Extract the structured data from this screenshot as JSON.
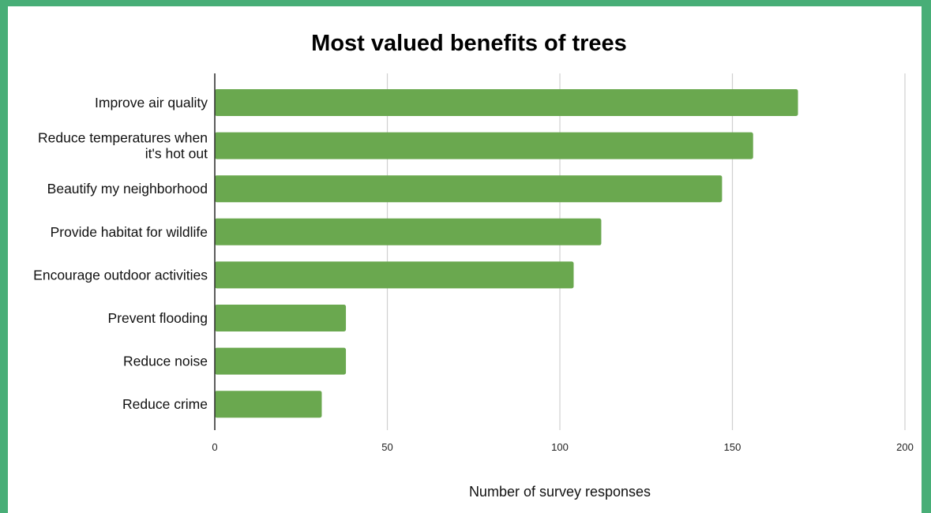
{
  "chart_data": {
    "type": "bar",
    "orientation": "horizontal",
    "title": "Most valued benefits of trees",
    "xlabel": "Number of survey responses",
    "ylabel": "",
    "categories": [
      [
        "Improve air quality"
      ],
      [
        "Reduce temperatures when",
        "it's hot out"
      ],
      [
        "Beautify my neighborhood"
      ],
      [
        "Provide habitat for wildlife"
      ],
      [
        "Encourage outdoor activities"
      ],
      [
        "Prevent flooding"
      ],
      [
        "Reduce noise"
      ],
      [
        "Reduce crime"
      ]
    ],
    "values": [
      169,
      156,
      147,
      112,
      104,
      38,
      38,
      31
    ],
    "xlim": [
      0,
      200
    ],
    "ticks": [
      0,
      50,
      100,
      150,
      200
    ],
    "grid": true,
    "legend": "none",
    "colors": {
      "background": "#48ae77",
      "panel": "#ffffff",
      "bar": "#6aa84f",
      "grid": "#d0d0d0",
      "axis": "#333333"
    }
  }
}
